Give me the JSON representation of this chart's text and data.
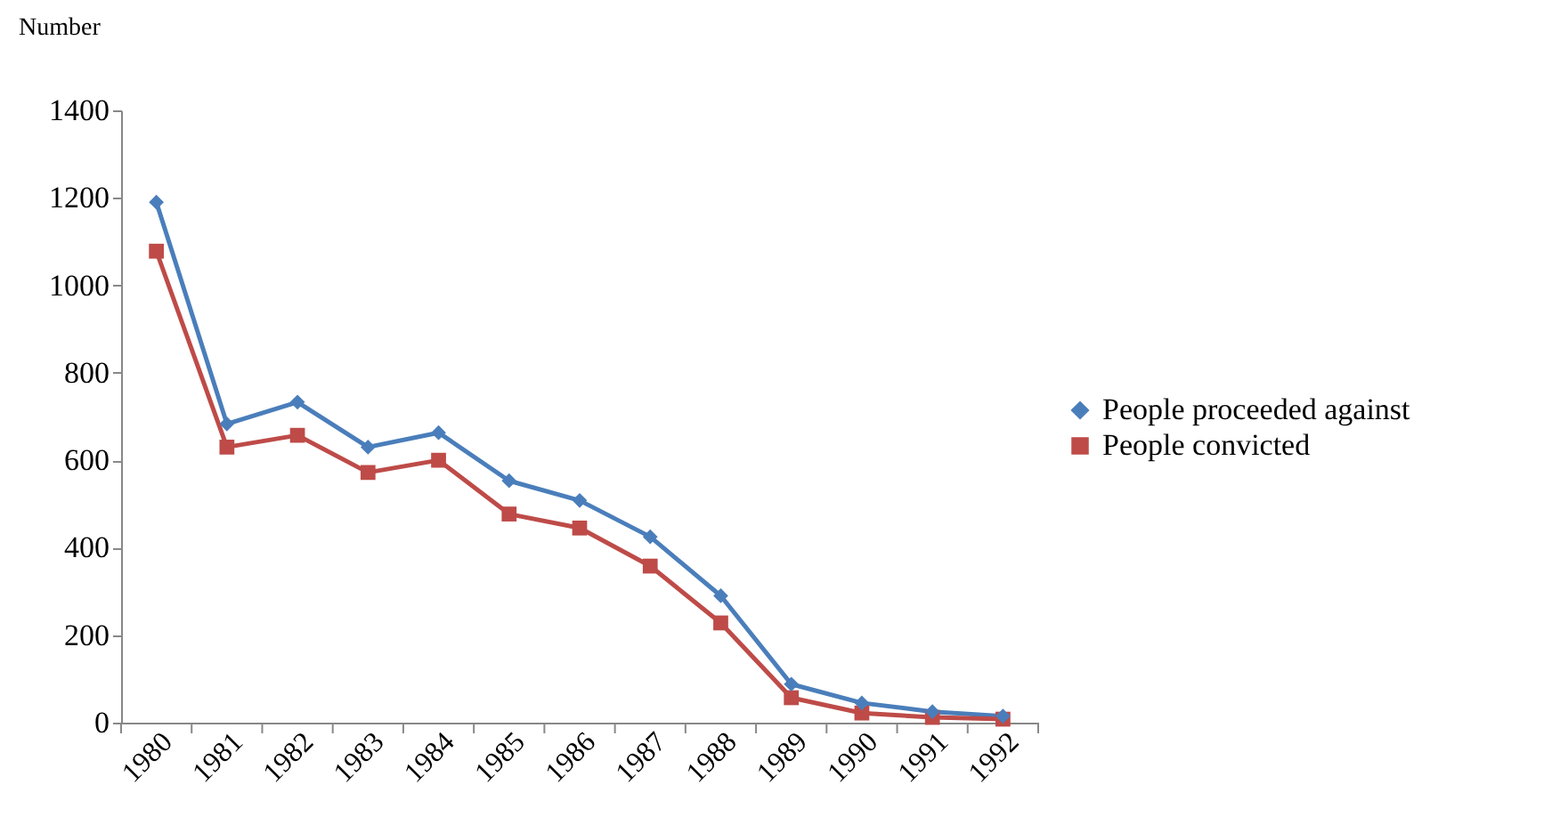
{
  "chart_data": {
    "type": "line",
    "ylabel": "Number",
    "categories": [
      "1980",
      "1981",
      "1982",
      "1983",
      "1984",
      "1985",
      "1986",
      "1987",
      "1988",
      "1989",
      "1990",
      "1991",
      "1992"
    ],
    "series": [
      {
        "name": "People proceeded against",
        "color": "#4a7ebb",
        "marker": "diamond",
        "values": [
          1190,
          683,
          733,
          630,
          663,
          553,
          508,
          425,
          290,
          88,
          45,
          25,
          15
        ]
      },
      {
        "name": "People convicted",
        "color": "#be4b48",
        "marker": "square",
        "values": [
          1078,
          630,
          657,
          572,
          600,
          477,
          445,
          358,
          228,
          57,
          22,
          12,
          8
        ]
      }
    ],
    "ylim": [
      0,
      1400
    ],
    "yticks": [
      0,
      200,
      400,
      600,
      800,
      1000,
      1200,
      1400
    ],
    "grid": false,
    "legend": "right",
    "line_style": "solid"
  }
}
